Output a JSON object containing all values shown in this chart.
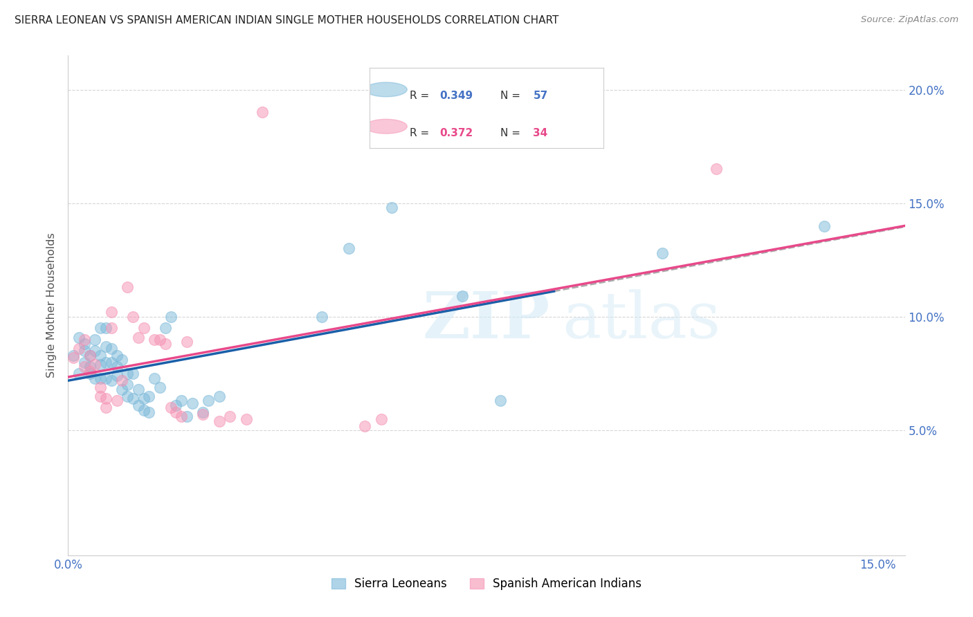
{
  "title": "SIERRA LEONEAN VS SPANISH AMERICAN INDIAN SINGLE MOTHER HOUSEHOLDS CORRELATION CHART",
  "source": "Source: ZipAtlas.com",
  "ylabel": "Single Mother Households",
  "xlim": [
    0.0,
    0.155
  ],
  "ylim": [
    -0.005,
    0.215
  ],
  "xtick_vals": [
    0.0,
    0.03,
    0.06,
    0.09,
    0.12,
    0.15
  ],
  "xtick_labels": [
    "0.0%",
    "",
    "",
    "",
    "",
    "15.0%"
  ],
  "ytick_vals": [
    0.05,
    0.1,
    0.15,
    0.2
  ],
  "ytick_labels": [
    "5.0%",
    "10.0%",
    "15.0%",
    "20.0%"
  ],
  "blue_scatter_color": "#7ab8d9",
  "pink_scatter_color": "#f591b2",
  "blue_line_color": "#1a5fa8",
  "pink_line_color": "#e8498a",
  "gray_dash_color": "#aaaaaa",
  "R_blue": 0.349,
  "N_blue": 57,
  "R_pink": 0.372,
  "N_pink": 34,
  "sierra_x": [
    0.001,
    0.002,
    0.002,
    0.003,
    0.003,
    0.003,
    0.004,
    0.004,
    0.004,
    0.005,
    0.005,
    0.005,
    0.006,
    0.006,
    0.006,
    0.006,
    0.007,
    0.007,
    0.007,
    0.007,
    0.008,
    0.008,
    0.008,
    0.009,
    0.009,
    0.009,
    0.01,
    0.01,
    0.011,
    0.011,
    0.011,
    0.012,
    0.012,
    0.013,
    0.013,
    0.014,
    0.014,
    0.015,
    0.015,
    0.016,
    0.017,
    0.018,
    0.019,
    0.02,
    0.021,
    0.022,
    0.023,
    0.025,
    0.026,
    0.028,
    0.047,
    0.052,
    0.06,
    0.073,
    0.08,
    0.11,
    0.14
  ],
  "sierra_y": [
    0.083,
    0.091,
    0.075,
    0.085,
    0.088,
    0.08,
    0.078,
    0.083,
    0.075,
    0.073,
    0.085,
    0.09,
    0.079,
    0.083,
    0.095,
    0.073,
    0.073,
    0.08,
    0.087,
    0.095,
    0.072,
    0.08,
    0.086,
    0.074,
    0.078,
    0.083,
    0.081,
    0.068,
    0.065,
    0.07,
    0.075,
    0.064,
    0.075,
    0.061,
    0.068,
    0.059,
    0.064,
    0.058,
    0.065,
    0.073,
    0.069,
    0.095,
    0.1,
    0.061,
    0.063,
    0.056,
    0.062,
    0.058,
    0.063,
    0.065,
    0.1,
    0.13,
    0.148,
    0.109,
    0.063,
    0.128,
    0.14
  ],
  "spanish_x": [
    0.001,
    0.002,
    0.003,
    0.003,
    0.004,
    0.004,
    0.005,
    0.006,
    0.006,
    0.007,
    0.007,
    0.008,
    0.008,
    0.009,
    0.01,
    0.011,
    0.012,
    0.013,
    0.014,
    0.016,
    0.017,
    0.018,
    0.019,
    0.02,
    0.021,
    0.022,
    0.025,
    0.028,
    0.03,
    0.033,
    0.036,
    0.055,
    0.058,
    0.12
  ],
  "spanish_y": [
    0.082,
    0.086,
    0.078,
    0.09,
    0.083,
    0.076,
    0.079,
    0.069,
    0.065,
    0.06,
    0.064,
    0.095,
    0.102,
    0.063,
    0.072,
    0.113,
    0.1,
    0.091,
    0.095,
    0.09,
    0.09,
    0.088,
    0.06,
    0.058,
    0.056,
    0.089,
    0.057,
    0.054,
    0.056,
    0.055,
    0.19,
    0.052,
    0.055,
    0.165
  ]
}
